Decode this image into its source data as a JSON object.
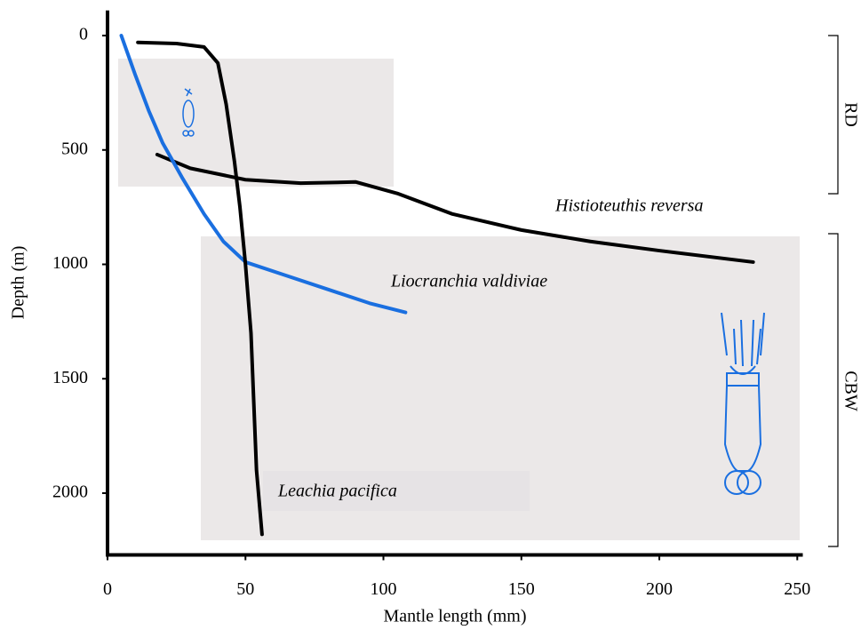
{
  "chart_data": {
    "type": "line",
    "x_label": "Mantle length (mm)",
    "y_label": "Depth (m)",
    "xlim": [
      0,
      252
    ],
    "ylim": [
      -110,
      2270
    ],
    "y_inverted": true,
    "xticks": [
      0,
      50,
      100,
      150,
      200,
      250
    ],
    "yticks": [
      0,
      500,
      1000,
      1500,
      2000
    ],
    "grid": false,
    "series": [
      {
        "name": "Histioteuthis reversa",
        "color": "#000000",
        "x": [
          18,
          30,
          50,
          70,
          90,
          105,
          125,
          150,
          175,
          200,
          234
        ],
        "values": [
          520,
          580,
          630,
          645,
          640,
          690,
          780,
          850,
          900,
          940,
          990
        ]
      },
      {
        "name": "Liocranchia valdiviae",
        "color": "#1a6fe0",
        "x": [
          5,
          10,
          15,
          20,
          27,
          35,
          42,
          50,
          65,
          80,
          95,
          108
        ],
        "values": [
          0,
          170,
          330,
          470,
          620,
          780,
          900,
          990,
          1050,
          1110,
          1170,
          1210
        ]
      },
      {
        "name": "Leachia pacifica",
        "color": "#000000",
        "x": [
          11,
          25,
          35,
          40,
          43,
          46,
          48,
          50,
          52,
          53,
          54,
          56
        ],
        "values": [
          30,
          35,
          50,
          120,
          300,
          550,
          750,
          1000,
          1300,
          1600,
          1900,
          2180
        ]
      }
    ],
    "annotations": [
      "RD",
      "CBW"
    ]
  }
}
